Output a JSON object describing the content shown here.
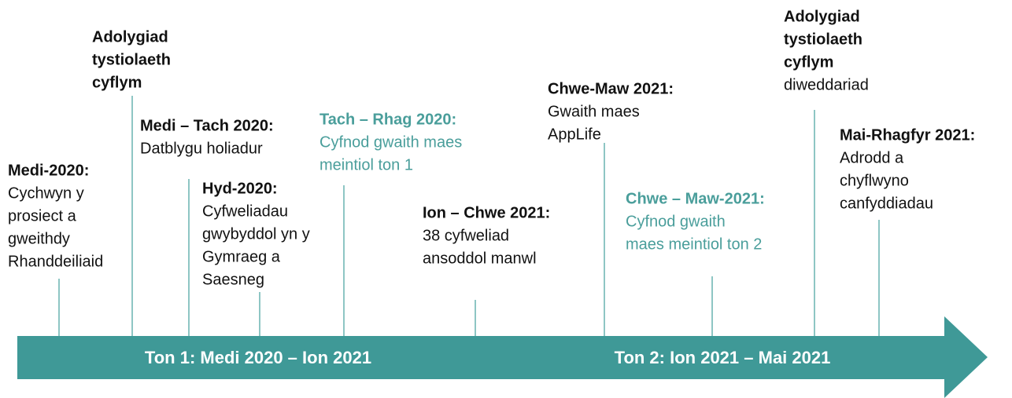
{
  "events": [
    {
      "title": [
        "Medi-2020:"
      ],
      "lines": [
        "Cychwyn y",
        "prosiect a",
        "gweithdy",
        "Rhanddeiliaid"
      ]
    },
    {
      "title": [
        "Adolygiad",
        "tystiolaeth",
        "cyflym"
      ],
      "lines": []
    },
    {
      "title": [
        "Medi – Tach 2020:"
      ],
      "lines": [
        "Datblygu holiadur"
      ]
    },
    {
      "title": [
        "Hyd-2020:"
      ],
      "lines": [
        "Cyfweliadau",
        "gwybyddol yn y",
        "Gymraeg a",
        "Saesneg"
      ]
    },
    {
      "title": [
        "Tach – Rhag 2020:"
      ],
      "lines": [
        "Cyfnod gwaith maes",
        "meintiol ton 1"
      ]
    },
    {
      "title": [
        "Ion – Chwe 2021:"
      ],
      "lines": [
        "38 cyfweliad",
        "ansoddol manwl"
      ]
    },
    {
      "title": [
        "Chwe-Maw 2021:"
      ],
      "lines": [
        "Gwaith maes",
        "AppLife"
      ]
    },
    {
      "title": [
        "Chwe – Maw-2021:"
      ],
      "lines": [
        "Cyfnod gwaith",
        "maes meintiol ton 2"
      ]
    },
    {
      "title": [
        "Adolygiad",
        "tystiolaeth",
        "cyflym"
      ],
      "lines": [
        "diweddariad"
      ]
    },
    {
      "title": [
        "Mai-Rhagfyr 2021:"
      ],
      "lines": [
        "Adrodd a",
        "chyflwyno",
        "canfyddiadau"
      ]
    }
  ],
  "phases": [
    "Ton 1: Medi 2020 – Ion 2021",
    "Ton 2: Ion 2021 – Mai 2021"
  ]
}
